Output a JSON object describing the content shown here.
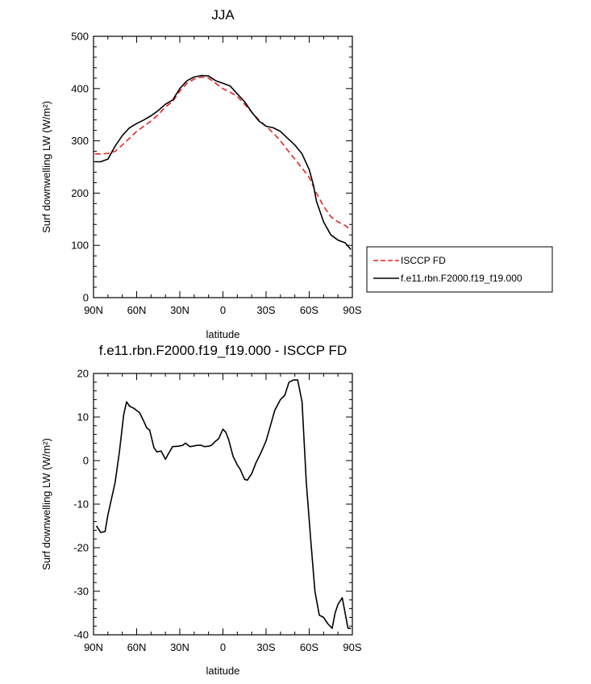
{
  "chart_data": [
    {
      "type": "line",
      "title": "JJA",
      "xlabel": "latitude",
      "ylabel": "Surf downwelling LW (W/m²)",
      "xlim": [
        90,
        -90
      ],
      "ylim": [
        0,
        500
      ],
      "yticks": [
        0,
        100,
        200,
        300,
        400,
        500
      ],
      "xticks": [
        90,
        60,
        30,
        0,
        -30,
        -60,
        -90
      ],
      "xtick_labels": [
        "90N",
        "60N",
        "30N",
        "0",
        "30S",
        "60S",
        "90S"
      ],
      "grid": false,
      "legend_position": "right",
      "series": [
        {
          "name": "ISCCP FD",
          "color": "#e8231f",
          "dash": "dashed",
          "x": [
            89,
            85,
            80,
            75,
            70,
            65,
            60,
            55,
            50,
            45,
            40,
            35,
            30,
            25,
            20,
            15,
            10,
            5,
            0,
            -5,
            -10,
            -15,
            -20,
            -25,
            -30,
            -35,
            -40,
            -45,
            -50,
            -55,
            -60,
            -65,
            -70,
            -75,
            -80,
            -85,
            -89
          ],
          "y": [
            275,
            275,
            276,
            280,
            292,
            305,
            318,
            328,
            338,
            350,
            365,
            375,
            395,
            410,
            418,
            422,
            420,
            410,
            400,
            393,
            385,
            370,
            355,
            340,
            328,
            315,
            300,
            282,
            265,
            248,
            230,
            200,
            175,
            155,
            145,
            138,
            130
          ]
        },
        {
          "name": "f.e11.rbn.F2000.f19_f19.000",
          "color": "#000000",
          "dash": "solid",
          "x": [
            89,
            85,
            80,
            75,
            70,
            65,
            60,
            55,
            50,
            45,
            40,
            35,
            30,
            25,
            20,
            15,
            10,
            5,
            0,
            -5,
            -10,
            -15,
            -20,
            -25,
            -30,
            -35,
            -40,
            -45,
            -50,
            -55,
            -60,
            -63,
            -65,
            -70,
            -75,
            -80,
            -85,
            -89
          ],
          "y": [
            260,
            260,
            265,
            290,
            310,
            325,
            333,
            340,
            348,
            358,
            370,
            378,
            400,
            415,
            422,
            425,
            424,
            415,
            410,
            405,
            390,
            375,
            355,
            338,
            328,
            325,
            318,
            305,
            292,
            275,
            245,
            215,
            185,
            145,
            120,
            110,
            105,
            92
          ]
        }
      ]
    },
    {
      "type": "line",
      "title": "f.e11.rbn.F2000.f19_f19.000 - ISCCP FD",
      "xlabel": "latitude",
      "ylabel": "Surf downwelling LW (W/m²)",
      "xlim": [
        90,
        -90
      ],
      "ylim": [
        -40,
        20
      ],
      "yticks": [
        -40,
        -30,
        -20,
        -10,
        0,
        10,
        20
      ],
      "xticks": [
        90,
        60,
        30,
        0,
        -30,
        -60,
        -90
      ],
      "xtick_labels": [
        "90N",
        "60N",
        "30N",
        "0",
        "30S",
        "60S",
        "90S"
      ],
      "grid": false,
      "series": [
        {
          "color": "#000000",
          "dash": "solid",
          "x": [
            88,
            85,
            82,
            80,
            75,
            72,
            69,
            67,
            65,
            62,
            58,
            55,
            53,
            51,
            48,
            46,
            43,
            40,
            38,
            35,
            31,
            28,
            26,
            23,
            21,
            18,
            15,
            13,
            10,
            8,
            5,
            3,
            0,
            -2,
            -4,
            -7,
            -10,
            -12,
            -15,
            -17,
            -20,
            -23,
            -26,
            -30,
            -33,
            -36,
            -40,
            -43,
            -46,
            -49,
            -52,
            -55,
            -58,
            -61,
            -64,
            -67,
            -70,
            -73,
            -76,
            -78,
            -80,
            -83,
            -87,
            -89
          ],
          "y": [
            -15,
            -16.5,
            -16.3,
            -12.5,
            -5,
            2,
            10.5,
            13.5,
            12.5,
            12,
            11,
            9,
            7.5,
            7,
            3,
            2,
            2.2,
            0.3,
            1.5,
            3.2,
            3.3,
            3.5,
            4,
            3.2,
            3.3,
            3.5,
            3.5,
            3.2,
            3.3,
            3.5,
            4.5,
            5,
            7.2,
            6.5,
            4.8,
            1,
            -1,
            -2,
            -4.3,
            -4.5,
            -3,
            -0.5,
            1.5,
            4.5,
            8,
            11.5,
            14,
            15,
            18,
            18.5,
            18.5,
            13.5,
            -5,
            -18,
            -30,
            -35.5,
            -36,
            -37.5,
            -38.5,
            -35,
            -33,
            -31.5,
            -38.5,
            -38.5
          ]
        }
      ]
    }
  ],
  "colors": {
    "isccp": "#e8231f",
    "model": "#000000"
  }
}
